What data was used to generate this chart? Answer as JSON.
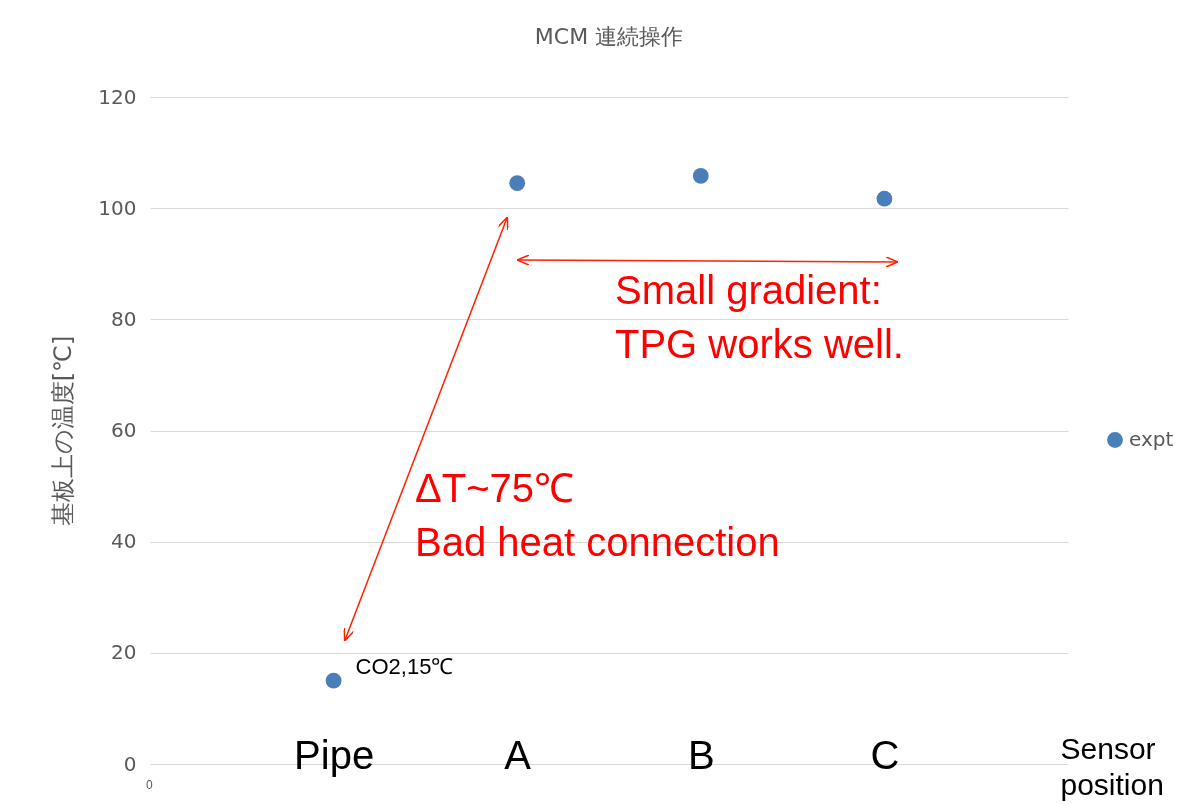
{
  "chart_data": {
    "type": "scatter",
    "title": "MCM 連続操作",
    "xlabel": "Sensor position",
    "ylabel": "基板上の温度[℃]",
    "categories": [
      "Pipe",
      "A",
      "B",
      "C"
    ],
    "ylim": [
      0,
      120
    ],
    "yticks": [
      0,
      20,
      40,
      60,
      80,
      100,
      120
    ],
    "series": [
      {
        "name": "expt",
        "color": "#4a7ebb",
        "values": [
          15,
          104.5,
          105.8,
          101.7
        ]
      }
    ],
    "grid": "y",
    "legend": "right",
    "marker": "circle",
    "annotations": [
      {
        "text": "CO2,15℃",
        "x": "Pipe",
        "y": 15
      },
      "ΔT~75℃\nBad heat connection",
      "Small gradient:\nTPG works well.",
      "0"
    ]
  }
}
